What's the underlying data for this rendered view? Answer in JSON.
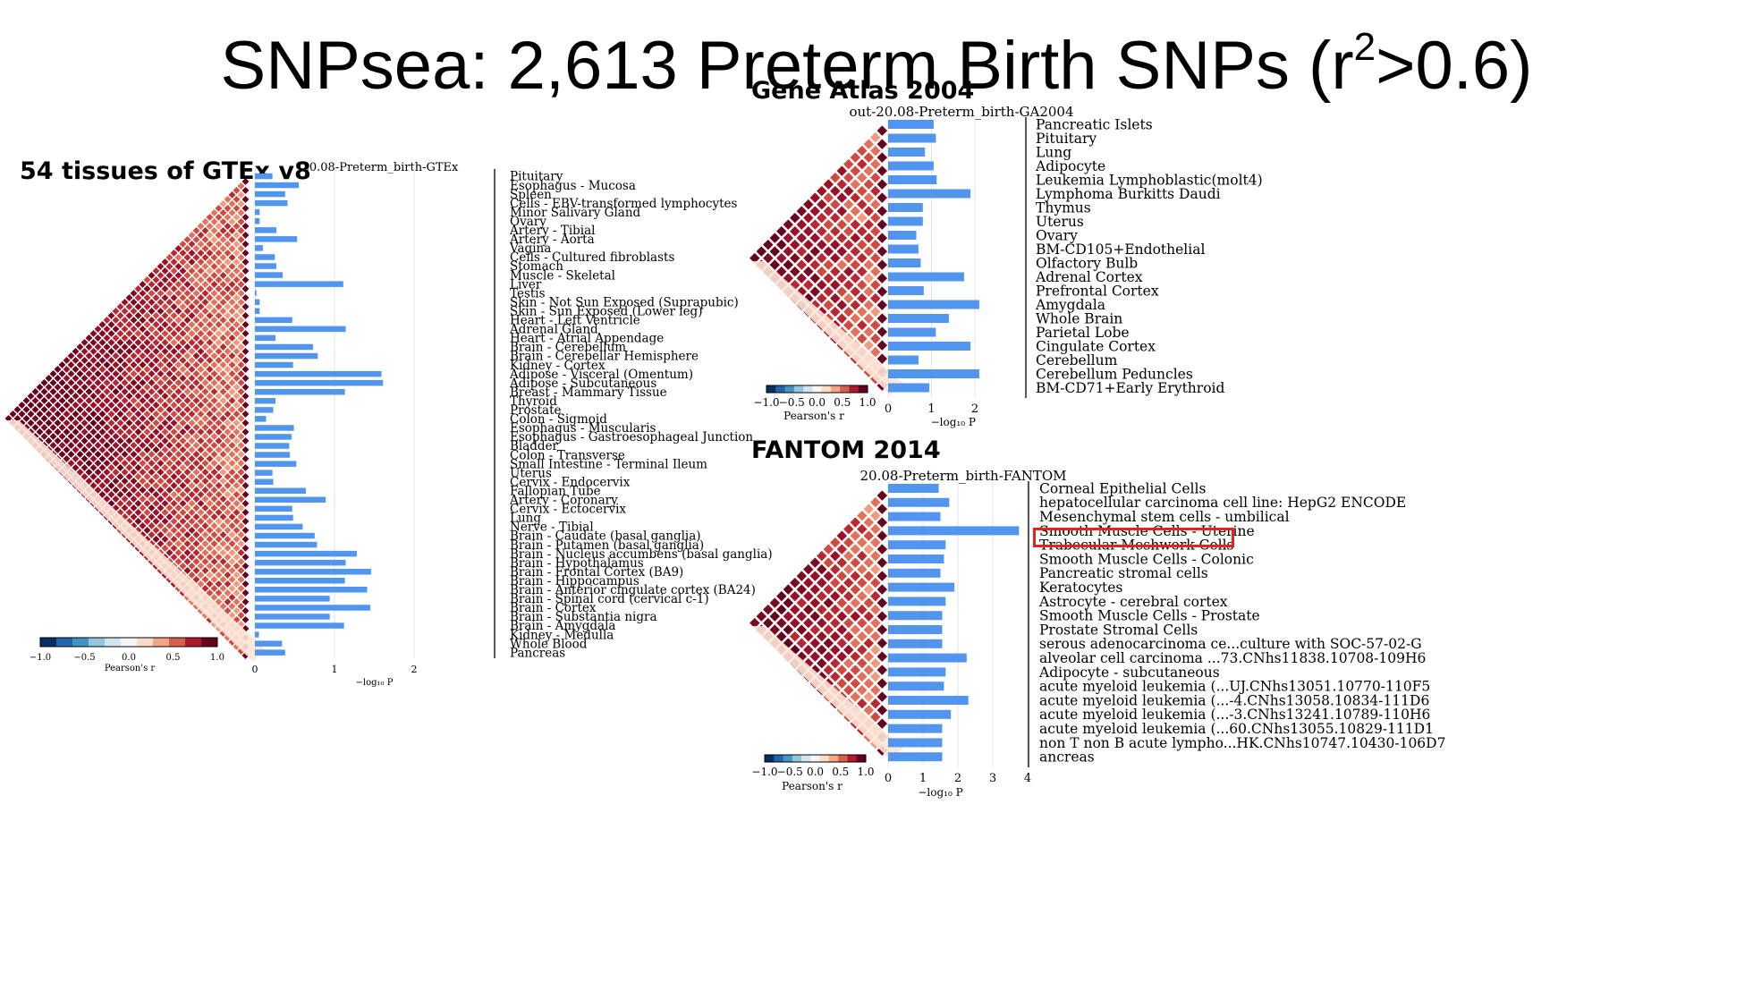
{
  "page": {
    "title_prefix": "SNPsea: 2,613 Preterm Birth SNPs (r",
    "title_sup": "2",
    "title_suffix": ">0.6)",
    "gtex_heading": "54 tissues of GTEx v8",
    "ga_heading": "Gene Atlas 2004",
    "fantom_heading": "FANTOM 2014"
  },
  "chart_data": [
    {
      "id": "gtex",
      "type": "bar",
      "orientation": "horizontal",
      "title": "20.08-Preterm_birth-GTEx",
      "xlabel": "−log₁₀ P",
      "xlim": [
        0,
        3.0
      ],
      "xticks": [
        "0",
        "1",
        "2"
      ],
      "colorbar_label": "Pearson's r",
      "colorbar_ticks": [
        "−1.0",
        "−0.5",
        "0.0",
        "0.5",
        "1.0"
      ],
      "categories": [
        "Pituitary",
        "Esophagus - Mucosa",
        "Spleen",
        "Cells - EBV-transformed lymphocytes",
        "Minor Salivary Gland",
        "Ovary",
        "Artery - Tibial",
        "Artery - Aorta",
        "Vagina",
        "Cells - Cultured fibroblasts",
        "Stomach",
        "Muscle - Skeletal",
        "Liver",
        "Testis",
        "Skin - Not Sun Exposed (Suprapubic)",
        "Skin - Sun Exposed (Lower leg)",
        "Heart - Left Ventricle",
        "Adrenal Gland",
        "Heart - Atrial Appendage",
        "Brain - Cerebellum",
        "Brain - Cerebellar Hemisphere",
        "Kidney - Cortex",
        "Adipose - Visceral (Omentum)",
        "Adipose - Subcutaneous",
        "Breast - Mammary Tissue",
        "Thyroid",
        "Prostate",
        "Colon - Sigmoid",
        "Esophagus - Muscularis",
        "Esophagus - Gastroesophageal Junction",
        "Bladder",
        "Colon - Transverse",
        "Small Intestine - Terminal Ileum",
        "Uterus",
        "Cervix - Endocervix",
        "Fallopian Tube",
        "Artery - Coronary",
        "Cervix - Ectocervix",
        "Lung",
        "Nerve - Tibial",
        "Brain - Caudate (basal ganglia)",
        "Brain - Putamen (basal ganglia)",
        "Brain - Nucleus accumbens (basal ganglia)",
        "Brain - Hypothalamus",
        "Brain - Frontal Cortex (BA9)",
        "Brain - Hippocampus",
        "Brain - Anterior cingulate cortex (BA24)",
        "Brain - Spinal cord (cervical c-1)",
        "Brain - Cortex",
        "Brain - Substantia nigra",
        "Brain - Amygdala",
        "Kidney - Medulla",
        "Whole Blood",
        "Pancreas"
      ],
      "values": [
        0.22,
        0.55,
        0.38,
        0.41,
        0.06,
        0.06,
        0.27,
        0.53,
        0.1,
        0.25,
        0.27,
        0.35,
        1.11,
        0.02,
        0.06,
        0.06,
        0.47,
        1.14,
        0.26,
        0.73,
        0.79,
        0.48,
        1.59,
        1.61,
        1.13,
        0.26,
        0.23,
        0.14,
        0.49,
        0.46,
        0.43,
        0.44,
        0.52,
        0.22,
        0.23,
        0.64,
        0.89,
        0.47,
        0.48,
        0.6,
        0.75,
        0.78,
        1.28,
        1.14,
        1.46,
        1.13,
        1.41,
        0.94,
        1.45,
        0.94,
        1.12,
        0.05,
        0.34,
        0.38
      ]
    },
    {
      "id": "gene-atlas",
      "type": "bar",
      "orientation": "horizontal",
      "title": "out-20.08-Preterm_birth-GA2004",
      "xlabel": "−log₁₀ P",
      "xlim": [
        0,
        2.9
      ],
      "xticks": [
        "0",
        "1",
        "2"
      ],
      "colorbar_label": "Pearson's r",
      "colorbar_ticks": [
        "−1.0",
        "−0.5",
        "0.0",
        "0.5",
        "1.0"
      ],
      "categories": [
        "Pancreatic Islets",
        "Pituitary",
        "Lung",
        "Adipocyte",
        "Leukemia Lymphoblastic(molt4)",
        "Lymphoma Burkitts Daudi",
        "Thymus",
        "Uterus",
        "Ovary",
        "BM-CD105+Endothelial",
        "Olfactory Bulb",
        "Adrenal Cortex",
        "Prefrontal Cortex",
        "Amygdala",
        "Whole Brain",
        "Parietal Lobe",
        "Cingulate Cortex",
        "Cerebellum",
        "Cerebellum Peduncles",
        "BM-CD71+Early Erythroid"
      ],
      "values": [
        1.05,
        1.1,
        0.85,
        1.05,
        1.12,
        1.9,
        0.8,
        0.8,
        0.65,
        0.7,
        0.75,
        1.75,
        0.82,
        2.1,
        1.4,
        1.1,
        1.9,
        0.7,
        2.1,
        0.95
      ]
    },
    {
      "id": "fantom",
      "type": "bar",
      "orientation": "horizontal",
      "title": "20.08-Preterm_birth-FANTOM",
      "xlabel": "−log₁₀ P",
      "xlim": [
        0,
        4.0
      ],
      "xticks": [
        "0",
        "1",
        "2",
        "3",
        "4"
      ],
      "colorbar_label": "Pearson's r",
      "colorbar_ticks": [
        "−1.0",
        "−0.5",
        "0.0",
        "0.5",
        "1.0"
      ],
      "highlighted_category": "Smooth Muscle Cells - Uterine",
      "categories": [
        "Corneal Epithelial Cells",
        "hepatocellular carcinoma cell line: HepG2 ENCODE",
        "Mesenchymal stem cells - umbilical",
        "Smooth Muscle Cells - Uterine",
        "Trabecular Meshwork Cells",
        "Smooth Muscle Cells - Colonic",
        "Pancreatic stromal cells",
        "Keratocytes",
        "Astrocyte - cerebral cortex",
        "Smooth Muscle Cells - Prostate",
        "Prostate Stromal Cells",
        "serous adenocarcinoma ce...culture with SOC-57-02-G",
        "alveolar cell carcinoma ...73.CNhs11838.10708-109H6",
        "Adipocyte - subcutaneous",
        "acute myeloid leukemia (...UJ.CNhs13051.10770-110F5",
        "acute myeloid leukemia (...-4.CNhs13058.10834-111D6",
        "acute myeloid leukemia (...-3.CNhs13241.10789-110H6",
        "acute myeloid leukemia (...60.CNhs13055.10829-111D1",
        "non T non B acute lympho...HK.CNhs10747.10430-106D7",
        "ancreas"
      ],
      "values": [
        1.45,
        1.75,
        1.5,
        3.75,
        1.65,
        1.6,
        1.5,
        1.9,
        1.65,
        1.55,
        1.55,
        1.55,
        2.25,
        1.65,
        1.6,
        2.3,
        1.8,
        1.55,
        1.55,
        1.55
      ]
    }
  ]
}
